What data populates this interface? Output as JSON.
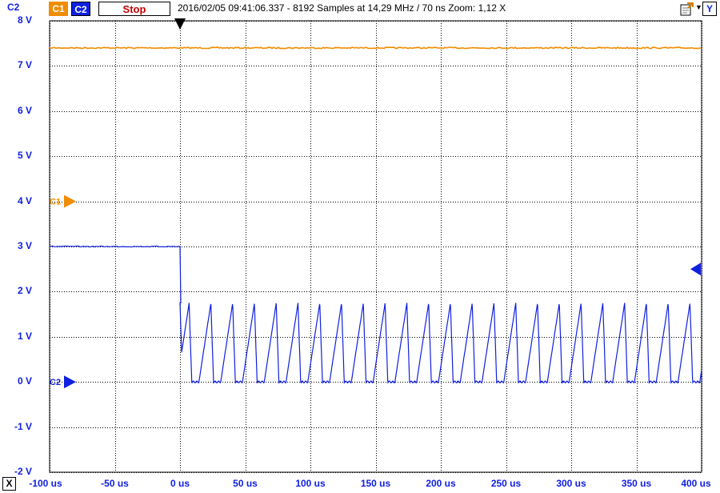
{
  "toolbar": {
    "channel1_label": "C1",
    "channel2_label": "C2",
    "stop_label": "Stop",
    "status": "2016/02/05  09:41:06.337 - 8192 Samples at 14,29 MHz / 70 ns Zoom: 1,12 X",
    "y_button": "Y",
    "x_button": "X",
    "export_icon": "export-icon"
  },
  "left_axis_channel": "C2",
  "colors": {
    "channel1": "#f08c00",
    "channel2": "#1020e0",
    "grid": "#000000",
    "background": "#ffffff"
  },
  "chart_data": {
    "type": "line",
    "title": "",
    "xlabel": "",
    "ylabel": "",
    "x_unit": "us",
    "y_unit": "V",
    "xlim": [
      -100,
      400
    ],
    "ylim": [
      -2,
      8
    ],
    "xticks": [
      -100,
      -50,
      0,
      50,
      100,
      150,
      200,
      250,
      300,
      350,
      400
    ],
    "xtick_labels": [
      "-100 us",
      "-50 us",
      "0 us",
      "50 us",
      "100 us",
      "150 us",
      "200 us",
      "250 us",
      "300 us",
      "350 us",
      "400 us"
    ],
    "yticks": [
      8,
      7,
      6,
      5,
      4,
      3,
      2,
      1,
      0,
      -1,
      -2
    ],
    "ytick_labels": [
      "8 V",
      "7 V",
      "6 V",
      "5 V",
      "4 V",
      "3 V",
      "2 V",
      "1 V",
      "0 V",
      "-1 V",
      "-2 V"
    ],
    "grid": "dotted",
    "trigger_time": 0,
    "trigger_level_channel2": 2.5,
    "channel_markers": [
      {
        "label": "C1",
        "level": 4.0
      },
      {
        "label": "C2",
        "level": 0.0
      }
    ],
    "series": [
      {
        "name": "C1",
        "kind": "constant",
        "level": 7.4,
        "x_range": [
          -100,
          400
        ]
      },
      {
        "name": "C2",
        "kind": "step_then_pulses",
        "pre_level": 3.0,
        "step_time": 0,
        "pulse_period_us": 16.7,
        "pulse_high": 1.75,
        "pulse_low": 0.0,
        "first_pulse_peak_us": 7,
        "x_range": [
          -100,
          400
        ]
      }
    ]
  }
}
